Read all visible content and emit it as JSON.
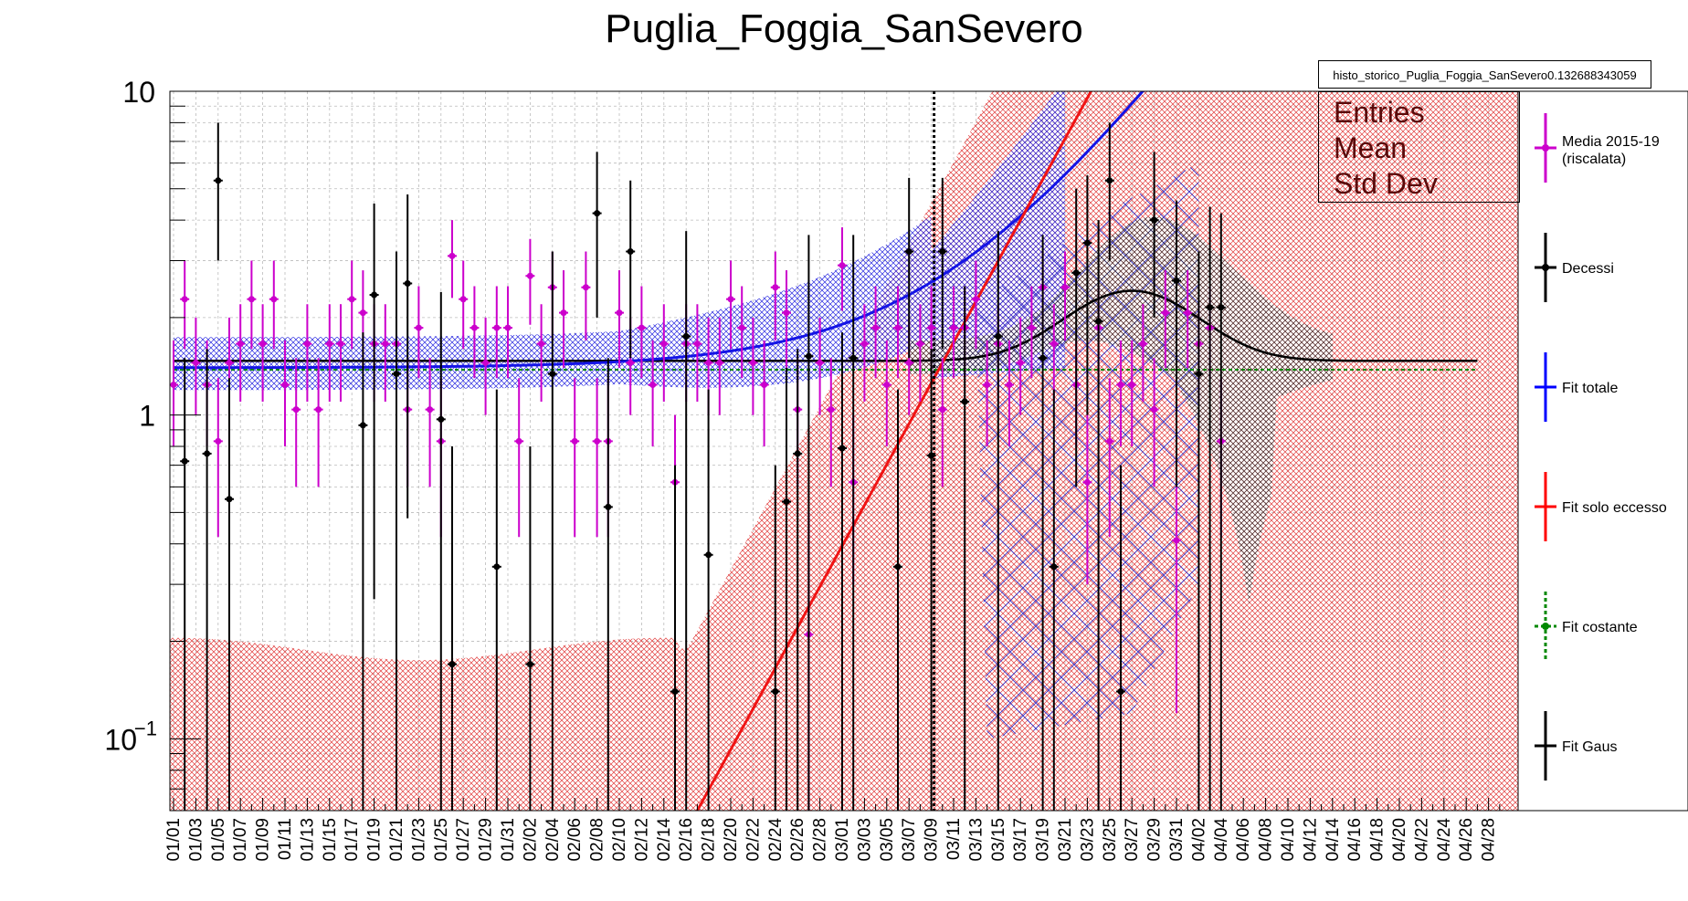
{
  "page": {
    "title": "Puglia_Foggia_SanSevero"
  },
  "stats": {
    "histogram_name": "histo_storico_Puglia_Foggia_SanSevero0.132688343059",
    "entries_label": "Entries",
    "mean_label": "Mean",
    "stddev_label": "Std Dev"
  },
  "legend": [
    {
      "label": "Media 2015-19",
      "label2": "(riscalata)",
      "color": "#cc00cc",
      "style": "point"
    },
    {
      "label": "Decessi",
      "color": "#000000",
      "style": "point"
    },
    {
      "label": "Fit totale",
      "color": "#0000ff",
      "style": "line"
    },
    {
      "label": "Fit solo eccesso",
      "color": "#ff0000",
      "style": "line"
    },
    {
      "label": "Fit costante",
      "color": "#008800",
      "style": "dotted"
    },
    {
      "label": "Fit Gaus",
      "color": "#000000",
      "style": "line"
    }
  ],
  "chart_data": {
    "type": "scatter",
    "title": "Puglia_Foggia_SanSevero",
    "y_scale": "log",
    "ylim": [
      0.06,
      10
    ],
    "y_tick_labels": [
      "10",
      "1",
      "10^-1"
    ],
    "x_start_day": 0,
    "x_num_days": 120,
    "x_tick_labels": [
      "01/01",
      "01/03",
      "01/05",
      "01/07",
      "01/09",
      "01/11",
      "01/13",
      "01/15",
      "01/17",
      "01/19",
      "01/21",
      "01/23",
      "01/25",
      "01/27",
      "01/29",
      "01/31",
      "02/02",
      "02/04",
      "02/06",
      "02/08",
      "02/10",
      "02/12",
      "02/14",
      "02/16",
      "02/18",
      "02/20",
      "02/22",
      "02/24",
      "02/26",
      "02/28",
      "03/01",
      "03/03",
      "03/05",
      "03/07",
      "03/09",
      "03/11",
      "03/13",
      "03/15",
      "03/17",
      "03/19",
      "03/21",
      "03/23",
      "03/25",
      "03/27",
      "03/29",
      "03/31",
      "04/02",
      "04/04",
      "04/06",
      "04/08",
      "04/10",
      "04/12",
      "04/14",
      "04/16",
      "04/18",
      "04/20",
      "04/22",
      "04/24",
      "04/26",
      "04/28"
    ],
    "grid": true,
    "vertical_marker_day": 68,
    "series": [
      {
        "name": "Media 2015-19 (riscalata)",
        "color": "#cc00cc",
        "points": [
          [
            0,
            1.24,
            0.8,
            1.7
          ],
          [
            1,
            2.28,
            1.6,
            3.0
          ],
          [
            2,
            1.45,
            1.0,
            2.0
          ],
          [
            3,
            1.24,
            0.8,
            1.7
          ],
          [
            4,
            0.83,
            0.42,
            1.3
          ],
          [
            5,
            1.45,
            1.0,
            2.0
          ],
          [
            6,
            1.66,
            1.1,
            2.2
          ],
          [
            7,
            2.28,
            1.6,
            3.0
          ],
          [
            8,
            1.66,
            1.1,
            2.2
          ],
          [
            9,
            2.28,
            1.6,
            3.0
          ],
          [
            10,
            1.24,
            0.8,
            1.7
          ],
          [
            11,
            1.04,
            0.6,
            1.5
          ],
          [
            12,
            1.66,
            1.1,
            2.2
          ],
          [
            13,
            1.04,
            0.6,
            1.5
          ],
          [
            14,
            1.66,
            1.1,
            2.2
          ],
          [
            15,
            1.66,
            1.1,
            2.2
          ],
          [
            16,
            2.28,
            1.6,
            3.0
          ],
          [
            17,
            2.07,
            1.4,
            2.8
          ],
          [
            18,
            1.66,
            1.1,
            2.2
          ],
          [
            19,
            1.66,
            1.1,
            2.2
          ],
          [
            20,
            1.66,
            1.1,
            2.2
          ],
          [
            21,
            1.04,
            0.6,
            1.5
          ],
          [
            22,
            1.86,
            1.3,
            2.5
          ],
          [
            23,
            1.04,
            0.6,
            1.5
          ],
          [
            24,
            0.83,
            0.42,
            1.3
          ],
          [
            25,
            3.1,
            2.3,
            4.0
          ],
          [
            26,
            2.28,
            1.6,
            3.0
          ],
          [
            27,
            1.86,
            1.3,
            2.5
          ],
          [
            28,
            1.45,
            1.0,
            2.0
          ],
          [
            29,
            1.86,
            1.3,
            2.5
          ],
          [
            30,
            1.86,
            1.3,
            2.5
          ],
          [
            31,
            0.83,
            0.42,
            1.3
          ],
          [
            32,
            2.69,
            1.9,
            3.5
          ],
          [
            33,
            1.66,
            1.1,
            2.2
          ],
          [
            34,
            2.48,
            1.7,
            3.2
          ],
          [
            35,
            2.07,
            1.4,
            2.8
          ],
          [
            36,
            0.83,
            0.42,
            1.3
          ],
          [
            37,
            2.48,
            1.7,
            3.2
          ],
          [
            38,
            0.83,
            0.42,
            1.3
          ],
          [
            39,
            0.83,
            0.42,
            1.3
          ],
          [
            40,
            2.07,
            1.4,
            2.8
          ],
          [
            41,
            1.45,
            1.0,
            2.0
          ],
          [
            42,
            1.86,
            1.3,
            2.5
          ],
          [
            43,
            1.24,
            0.8,
            1.7
          ],
          [
            44,
            1.66,
            1.1,
            2.2
          ],
          [
            45,
            0.62,
            0.3,
            1.0
          ],
          [
            46,
            1.66,
            1.1,
            2.2
          ],
          [
            47,
            1.66,
            1.1,
            2.2
          ],
          [
            48,
            1.45,
            1.0,
            2.0
          ],
          [
            49,
            1.45,
            1.0,
            2.0
          ],
          [
            50,
            2.28,
            1.6,
            3.0
          ],
          [
            51,
            1.86,
            1.3,
            2.5
          ],
          [
            52,
            1.45,
            1.0,
            2.0
          ],
          [
            53,
            1.24,
            0.8,
            1.7
          ],
          [
            54,
            2.48,
            1.7,
            3.2
          ],
          [
            55,
            2.07,
            1.4,
            2.8
          ],
          [
            56,
            1.04,
            0.6,
            1.5
          ],
          [
            57,
            0.21,
            0.06,
            0.5
          ],
          [
            58,
            1.45,
            1.0,
            2.0
          ],
          [
            59,
            1.04,
            0.6,
            1.5
          ],
          [
            60,
            2.9,
            2.1,
            3.8
          ],
          [
            61,
            0.62,
            0.3,
            1.0
          ],
          [
            62,
            1.66,
            1.1,
            2.2
          ],
          [
            63,
            1.86,
            1.3,
            2.5
          ],
          [
            64,
            1.24,
            0.8,
            1.7
          ],
          [
            65,
            1.86,
            1.3,
            2.5
          ],
          [
            66,
            1.45,
            1.0,
            2.0
          ],
          [
            67,
            1.66,
            1.1,
            2.2
          ],
          [
            68,
            1.86,
            1.3,
            2.5
          ],
          [
            69,
            1.04,
            0.6,
            1.5
          ],
          [
            70,
            1.86,
            1.3,
            2.5
          ],
          [
            71,
            1.86,
            1.3,
            2.5
          ],
          [
            72,
            2.28,
            1.6,
            3.0
          ],
          [
            73,
            1.24,
            0.8,
            1.7
          ],
          [
            74,
            1.66,
            1.1,
            2.2
          ],
          [
            75,
            1.24,
            0.8,
            1.7
          ],
          [
            76,
            1.45,
            1.0,
            2.0
          ],
          [
            77,
            1.86,
            1.3,
            2.5
          ],
          [
            78,
            2.48,
            1.7,
            3.2
          ],
          [
            79,
            1.66,
            1.1,
            2.2
          ],
          [
            80,
            2.48,
            1.7,
            3.2
          ],
          [
            81,
            1.24,
            0.8,
            1.7
          ],
          [
            82,
            0.62,
            0.3,
            1.0
          ],
          [
            83,
            1.86,
            1.3,
            2.5
          ],
          [
            84,
            0.83,
            0.42,
            1.3
          ],
          [
            85,
            1.24,
            0.8,
            1.7
          ],
          [
            86,
            1.24,
            0.8,
            1.7
          ],
          [
            87,
            1.66,
            1.1,
            2.2
          ],
          [
            88,
            1.04,
            0.6,
            1.5
          ],
          [
            89,
            2.07,
            1.4,
            2.8
          ],
          [
            90,
            0.41,
            0.12,
            0.8
          ],
          [
            91,
            2.07,
            1.4,
            2.8
          ],
          [
            92,
            1.66,
            1.1,
            2.2
          ],
          [
            93,
            1.86,
            1.3,
            2.5
          ],
          [
            94,
            0.83,
            0.42,
            1.3
          ]
        ]
      },
      {
        "name": "Decessi",
        "color": "#000000",
        "points": [
          [
            1,
            0.72,
            0.06,
            1.5
          ],
          [
            3,
            0.76,
            0.06,
            1.6
          ],
          [
            4,
            5.3,
            3.0,
            8.0
          ],
          [
            5,
            0.55,
            0.06,
            1.3
          ],
          [
            17,
            0.93,
            0.06,
            1.8
          ],
          [
            18,
            2.35,
            0.27,
            4.5
          ],
          [
            20,
            1.34,
            0.06,
            3.2
          ],
          [
            21,
            2.55,
            0.48,
            4.8
          ],
          [
            24,
            0.97,
            0.06,
            2.4
          ],
          [
            25,
            0.17,
            0.06,
            0.8
          ],
          [
            29,
            0.34,
            0.06,
            1.2
          ],
          [
            32,
            0.17,
            0.06,
            0.8
          ],
          [
            34,
            1.34,
            0.06,
            3.2
          ],
          [
            38,
            4.2,
            2.0,
            6.5
          ],
          [
            39,
            0.52,
            0.06,
            1.5
          ],
          [
            41,
            3.2,
            1.5,
            5.3
          ],
          [
            45,
            0.14,
            0.06,
            0.7
          ],
          [
            46,
            1.75,
            0.06,
            3.7
          ],
          [
            48,
            0.37,
            0.06,
            1.2
          ],
          [
            54,
            0.14,
            0.06,
            0.7
          ],
          [
            55,
            0.54,
            0.06,
            1.4
          ],
          [
            56,
            0.76,
            0.06,
            1.6
          ],
          [
            57,
            1.52,
            0.06,
            3.6
          ],
          [
            60,
            0.79,
            0.06,
            1.8
          ],
          [
            61,
            1.5,
            0.06,
            3.6
          ],
          [
            65,
            0.34,
            0.06,
            1.2
          ],
          [
            66,
            3.2,
            1.5,
            5.4
          ],
          [
            68,
            0.75,
            0.06,
            1.6
          ],
          [
            69,
            3.2,
            1.6,
            5.4
          ],
          [
            71,
            1.1,
            0.06,
            2.5
          ],
          [
            74,
            1.75,
            0.06,
            3.7
          ],
          [
            78,
            1.5,
            0.06,
            3.6
          ],
          [
            79,
            0.34,
            0.06,
            1.2
          ],
          [
            81,
            2.75,
            0.6,
            5.0
          ],
          [
            82,
            3.4,
            1.0,
            5.5
          ],
          [
            83,
            1.95,
            0.06,
            4.0
          ],
          [
            84,
            5.3,
            3.0,
            8.0
          ],
          [
            85,
            0.14,
            0.06,
            0.7
          ],
          [
            88,
            4.0,
            2.0,
            6.5
          ],
          [
            90,
            2.6,
            0.6,
            4.6
          ],
          [
            92,
            1.34,
            0.06,
            3.2
          ],
          [
            93,
            2.15,
            0.06,
            4.4
          ],
          [
            94,
            2.15,
            0.06,
            4.2
          ]
        ]
      }
    ],
    "fits": {
      "constant_level": 1.38,
      "gaus": {
        "base": 1.47,
        "amp": 0.95,
        "mean": 86,
        "sigma": 5.5
      },
      "total_exp": {
        "base": 1.4,
        "a": 0.0076,
        "k": 0.105,
        "t0": 20
      },
      "excess_exp": {
        "a": 0.06,
        "k": 0.1448,
        "t0": 47
      }
    }
  }
}
